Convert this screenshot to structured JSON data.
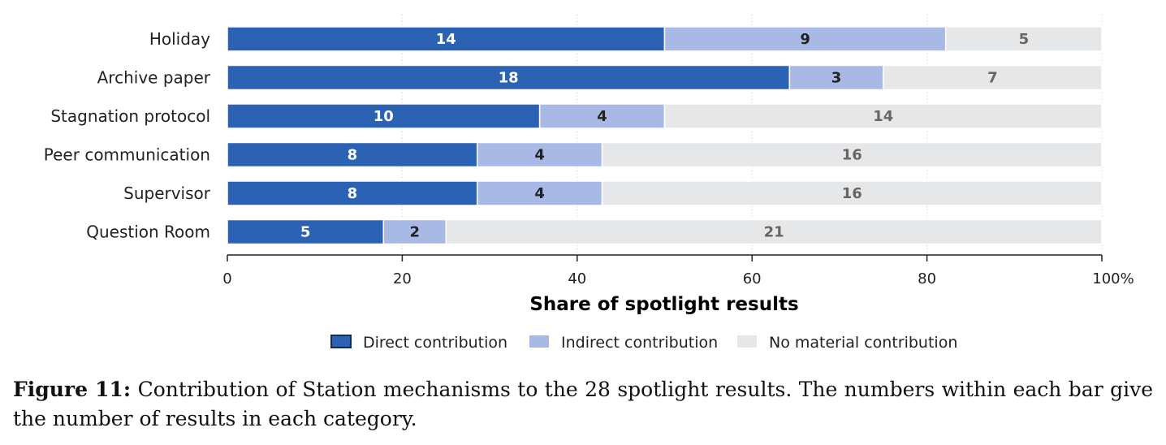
{
  "chart_data": {
    "type": "bar",
    "orientation": "horizontal",
    "stacked": true,
    "categories": [
      "Holiday",
      "Archive paper",
      "Stagnation protocol",
      "Peer communication",
      "Supervisor",
      "Question Room"
    ],
    "series": [
      {
        "name": "Direct contribution",
        "values": [
          14,
          18,
          10,
          8,
          8,
          5
        ],
        "color": "#2c62b4",
        "label_color": "#ffffff"
      },
      {
        "name": "Indirect contribution",
        "values": [
          9,
          3,
          4,
          4,
          4,
          2
        ],
        "color": "#a9b9e5",
        "label_color": "#222222"
      },
      {
        "name": "No material contribution",
        "values": [
          5,
          7,
          14,
          16,
          16,
          21
        ],
        "color": "#e6e7e9",
        "label_color": "#666666"
      }
    ],
    "total": 28,
    "xlabel": "Share of spotlight results",
    "xlim": [
      0,
      100
    ],
    "xticks": [
      "0",
      "20",
      "40",
      "60",
      "80",
      "100%"
    ],
    "xtick_values": [
      0,
      20,
      40,
      60,
      80,
      100
    ],
    "grid": "vertical dotted",
    "legend_position": "bottom-center"
  },
  "caption": {
    "label": "Figure 11:",
    "text": "Contribution of Station mechanisms to the 28 spotlight results. The numbers within each bar give the number of results in each category."
  }
}
